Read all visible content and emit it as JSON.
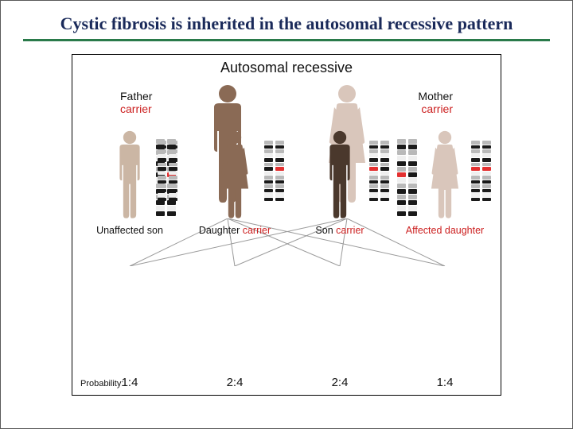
{
  "title": "Cystic fibrosis is inherited in the autosomal recessive pattern",
  "colors": {
    "title_text": "#1a2a5a",
    "rule": "#2a7a4a",
    "carrier_text": "#cc2020",
    "affected_text": "#cc2020",
    "normal_text": "#111111",
    "line_color": "#9a9a9a",
    "person_unaffected": "#cbb6a4",
    "person_carrier": "#8a6a55",
    "person_affected_dark": "#4a382c",
    "person_affected_female": "#d9c6bb",
    "chrom_black": "#1a1a1a",
    "chrom_grey": "#b9b9b9",
    "chrom_white": "#efefef",
    "chrom_red": "#e33030"
  },
  "figure": {
    "title": "Autosomal recessive",
    "parents": {
      "father": {
        "role": "Father",
        "status": "carrier",
        "fill": "#8a6a55",
        "chroms": [
          "normal",
          "mutant"
        ]
      },
      "mother": {
        "role": "Mother",
        "status": "carrier",
        "fill": "#d9c6bb",
        "chroms": [
          "mutant",
          "normal"
        ]
      }
    },
    "children": [
      {
        "id": "c1",
        "sex": "male",
        "fill": "#cbb6a4",
        "label_black": "Unaffected son",
        "label_red": "",
        "chroms": [
          "normal",
          "normal"
        ],
        "prob": "1:4"
      },
      {
        "id": "c2",
        "sex": "female",
        "fill": "#8a6a55",
        "label_black": "Daughter ",
        "label_red": "carrier",
        "chroms": [
          "normal",
          "mutant"
        ],
        "prob": "2:4"
      },
      {
        "id": "c3",
        "sex": "male",
        "fill": "#4a382c",
        "label_black": "Son ",
        "label_red": "carrier",
        "chroms": [
          "mutant",
          "normal"
        ],
        "prob": "2:4"
      },
      {
        "id": "c4",
        "sex": "female",
        "fill": "#d9c6bb",
        "label_black": "",
        "label_red": "Affected daughter",
        "chroms": [
          "mutant",
          "mutant"
        ],
        "prob": "1:4"
      }
    ],
    "probability_label": "Probability:",
    "inheritance_lines": {
      "parent_anchors": {
        "father": 195,
        "mother": 345
      },
      "child_anchors": {
        "c1": 72,
        "c2": 204,
        "c3": 336,
        "c4": 468
      }
    },
    "chromosome_bands": {
      "normal": [
        "g",
        "k",
        "g",
        "w",
        "k",
        "g",
        "k",
        "w",
        "g",
        "k",
        "g",
        "k",
        "w",
        "k"
      ],
      "mutant": [
        "g",
        "k",
        "g",
        "w",
        "k",
        "g",
        "r",
        "w",
        "g",
        "k",
        "g",
        "k",
        "w",
        "k"
      ]
    }
  }
}
